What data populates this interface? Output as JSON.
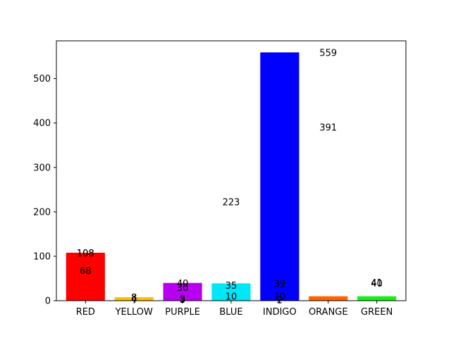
{
  "chart_data": {
    "type": "bar",
    "categories": [
      "RED",
      "YELLOW",
      "PURPLE",
      "BLUE",
      "INDIGO",
      "ORANGE",
      "GREEN"
    ],
    "values": [
      108,
      8,
      40,
      39,
      559,
      10,
      10
    ],
    "colors": [
      "#ff0000",
      "#ffc000",
      "#b800f0",
      "#00e8f8",
      "#0000ff",
      "#ff6400",
      "#18f018"
    ],
    "ylim": [
      0,
      585
    ],
    "yticks": [
      0,
      100,
      200,
      300,
      400,
      500
    ],
    "annotations": [
      {
        "x": 0,
        "y": 108,
        "text": "108"
      },
      {
        "x": 0,
        "y": 108,
        "text": "108"
      },
      {
        "x": 0,
        "y": 68,
        "text": "68"
      },
      {
        "x": 1,
        "y": 8,
        "text": "8"
      },
      {
        "x": 1,
        "y": 8,
        "text": "8"
      },
      {
        "x": 1,
        "y": 4,
        "text": "4"
      },
      {
        "x": 2,
        "y": 40,
        "text": "40"
      },
      {
        "x": 2,
        "y": 30,
        "text": "30"
      },
      {
        "x": 2,
        "y": 5,
        "text": "5"
      },
      {
        "x": 2,
        "y": 3,
        "text": "3"
      },
      {
        "x": 3,
        "y": 35,
        "text": "35"
      },
      {
        "x": 3,
        "y": 10,
        "text": "10"
      },
      {
        "x": 3,
        "y": 223,
        "text": "223"
      },
      {
        "x": 4,
        "y": 39,
        "text": "39"
      },
      {
        "x": 4,
        "y": 10,
        "text": "10"
      },
      {
        "x": 4,
        "y": 2,
        "text": "2"
      },
      {
        "x": 5,
        "y": 559,
        "text": "559"
      },
      {
        "x": 5,
        "y": 391,
        "text": "391"
      },
      {
        "x": 6,
        "y": 41,
        "text": "41"
      },
      {
        "x": 6,
        "y": 40,
        "text": "40"
      }
    ]
  }
}
